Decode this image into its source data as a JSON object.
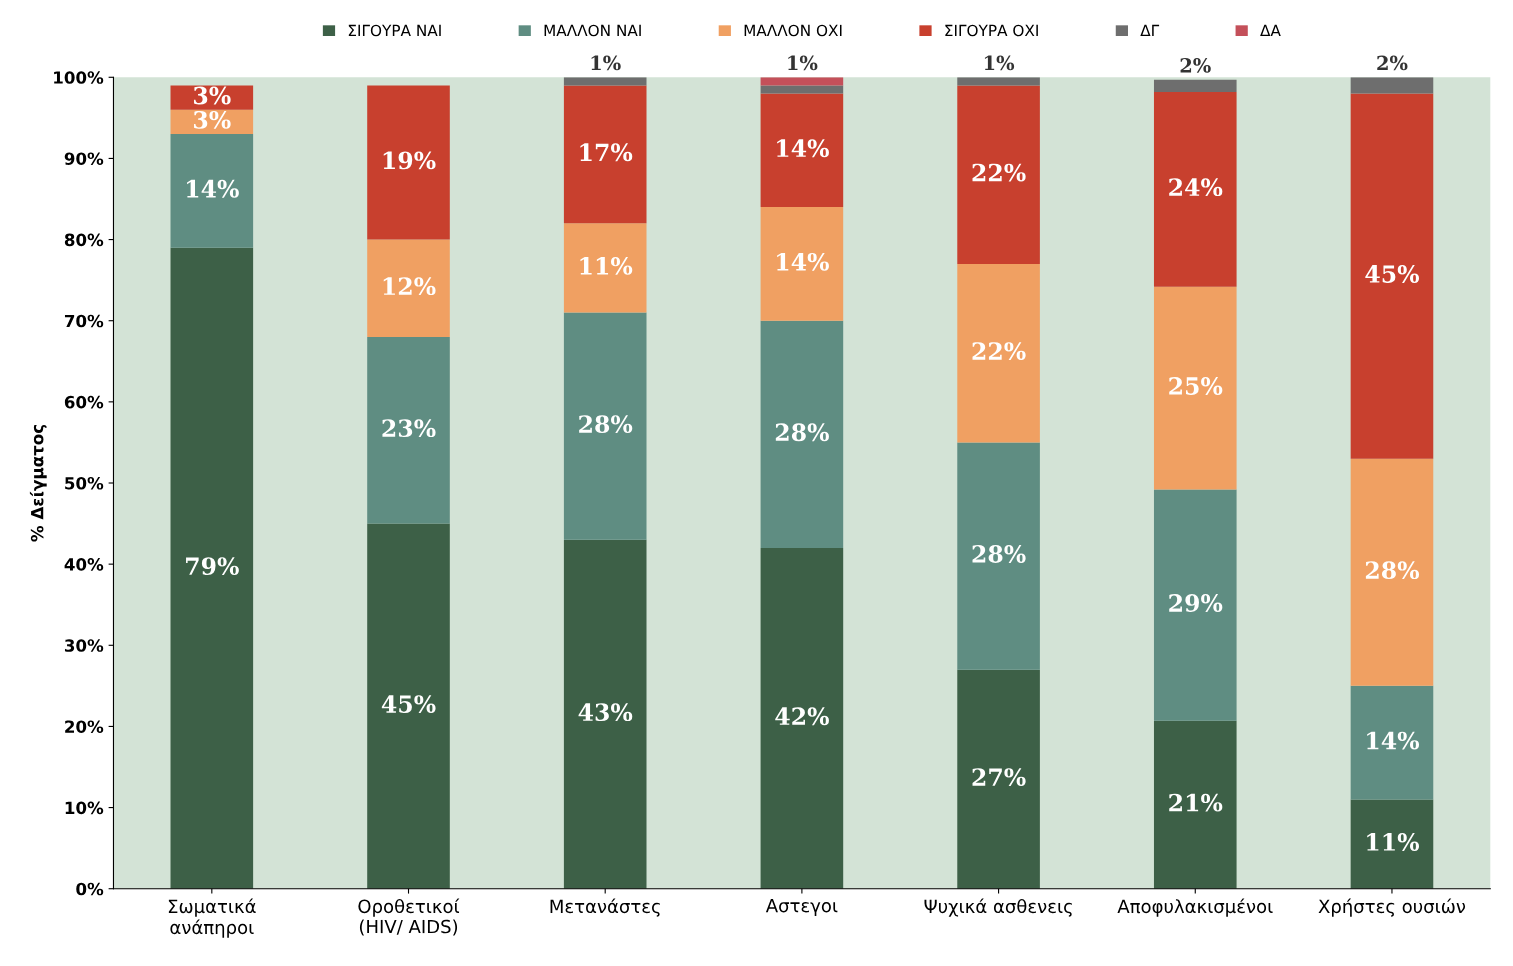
{
  "chart_data": {
    "type": "bar",
    "stacked": true,
    "ylabel": "% Δείγματος",
    "categories": [
      "Σωματικά\nανάπηροι",
      "Οροθετικοί\n(HIV/ AIDS)",
      "Μετανάστες",
      "Αστεγοι",
      "Ψυχικά ασθενεις",
      "Αποφυλακισμένοι",
      "Χρήστες ουσιών"
    ],
    "series": [
      {
        "name": "ΣΙΓΟΥΡΑ ΝΑΙ",
        "color": "#3d6047",
        "values": [
          79,
          45,
          43,
          42,
          27,
          20.7,
          11
        ],
        "value_labels": [
          "79%",
          "45%",
          "43%",
          "42%",
          "27%",
          "21%",
          "11%"
        ]
      },
      {
        "name": "ΜΑΛΛΟΝ ΝΑΙ",
        "color": "#5f8d82",
        "values": [
          14,
          23,
          28,
          28,
          28,
          28.5,
          14
        ],
        "value_labels": [
          "14%",
          "23%",
          "28%",
          "28%",
          "28%",
          "29%",
          "14%"
        ]
      },
      {
        "name": "ΜΑΛΛΟΝ ΟΧΙ",
        "color": "#f0a062",
        "values": [
          3,
          12,
          11,
          14,
          22,
          25,
          28
        ],
        "value_labels": [
          "3%",
          "12%",
          "11%",
          "14%",
          "22%",
          "25%",
          "28%"
        ]
      },
      {
        "name": "ΣΙΓΟΥΡΑ ΟΧΙ",
        "color": "#c8402e",
        "values": [
          3,
          19,
          17,
          14,
          22,
          24,
          45
        ],
        "value_labels": [
          "3%",
          "19%",
          "17%",
          "14%",
          "22%",
          "24%",
          "45%"
        ]
      },
      {
        "name": "ΔΓ",
        "color": "#6e6e6e",
        "values": [
          0,
          0,
          1,
          1,
          1,
          1.5,
          2
        ],
        "value_labels": [
          null,
          null,
          "1%",
          "1%",
          "1%",
          "2%",
          "2%"
        ]
      },
      {
        "name": "ΔΑ",
        "color": "#c4505a",
        "values": [
          0,
          0,
          0,
          1,
          0,
          0,
          0
        ],
        "value_labels": [
          null,
          null,
          null,
          null,
          null,
          null,
          null
        ]
      }
    ],
    "ylim": [
      0,
      100
    ],
    "yticks": [
      {
        "value": 0,
        "label": "0%"
      },
      {
        "value": 10,
        "label": "10%"
      },
      {
        "value": 20,
        "label": "20%"
      },
      {
        "value": 30,
        "label": "30%"
      },
      {
        "value": 40,
        "label": "40%"
      },
      {
        "value": 50,
        "label": "50%"
      },
      {
        "value": 60,
        "label": "60%"
      },
      {
        "value": 70,
        "label": "70%"
      },
      {
        "value": 80,
        "label": "80%"
      },
      {
        "value": 90,
        "label": "90%"
      },
      {
        "value": 100,
        "label": "100%"
      }
    ],
    "legend": "top",
    "grid": false
  }
}
